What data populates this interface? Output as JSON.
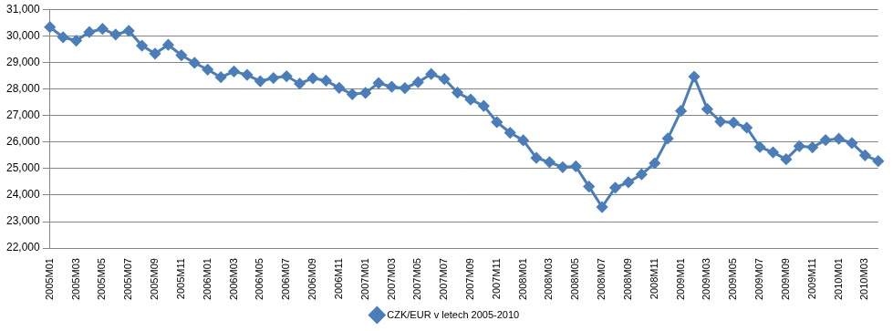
{
  "chart_data": {
    "type": "line",
    "categories": [
      "2005M01",
      null,
      "2005M03",
      null,
      "2005M05",
      null,
      "2005M07",
      null,
      "2005M09",
      null,
      "2005M11",
      null,
      "2006M01",
      null,
      "2006M03",
      null,
      "2006M05",
      null,
      "2006M07",
      null,
      "2006M09",
      null,
      "2006M11",
      null,
      "2007M01",
      null,
      "2007M03",
      null,
      "2007M05",
      null,
      "2007M07",
      null,
      "2007M09",
      null,
      "2007M11",
      null,
      "2008M01",
      null,
      "2008M03",
      null,
      "2008M05",
      null,
      "2008M07",
      null,
      "2008M09",
      null,
      "2008M11",
      null,
      "2009M01",
      null,
      "2009M03",
      null,
      "2009M05",
      null,
      "2009M07",
      null,
      "2009M09",
      null,
      "2009M11",
      null,
      "2010M01",
      null,
      "2010M03",
      null
    ],
    "series": [
      {
        "name": "CZK/EUR v letech 2005-2010",
        "color": "#4a7ebb",
        "marker": "diamond",
        "line_style": "solid",
        "values": [
          30.33,
          29.95,
          29.82,
          30.14,
          30.26,
          30.05,
          30.19,
          29.63,
          29.33,
          29.66,
          29.27,
          28.98,
          28.73,
          28.44,
          28.66,
          28.53,
          28.29,
          28.41,
          28.48,
          28.2,
          28.4,
          28.31,
          28.04,
          27.8,
          27.85,
          28.22,
          28.08,
          28.03,
          28.25,
          28.56,
          28.37,
          27.86,
          27.6,
          27.36,
          26.75,
          26.35,
          26.06,
          25.4,
          25.24,
          25.05,
          25.08,
          24.32,
          23.55,
          24.28,
          24.48,
          24.78,
          25.2,
          26.13,
          27.17,
          28.46,
          27.24,
          26.77,
          26.73,
          26.54,
          25.81,
          25.61,
          25.35,
          25.84,
          25.8,
          26.07,
          26.12,
          25.96,
          25.5,
          25.28
        ]
      }
    ],
    "ylim": [
      22,
      31
    ],
    "yticks": [
      {
        "value": 22,
        "label": "22,000"
      },
      {
        "value": 23,
        "label": "23,000"
      },
      {
        "value": 24,
        "label": "24,000"
      },
      {
        "value": 25,
        "label": "25,000"
      },
      {
        "value": 26,
        "label": "26,000"
      },
      {
        "value": 27,
        "label": "27,000"
      },
      {
        "value": 28,
        "label": "28,000"
      },
      {
        "value": 29,
        "label": "29,000"
      },
      {
        "value": 30,
        "label": "30,000"
      },
      {
        "value": 31,
        "label": "31,000"
      }
    ],
    "grid": true,
    "legend": "bottom"
  }
}
